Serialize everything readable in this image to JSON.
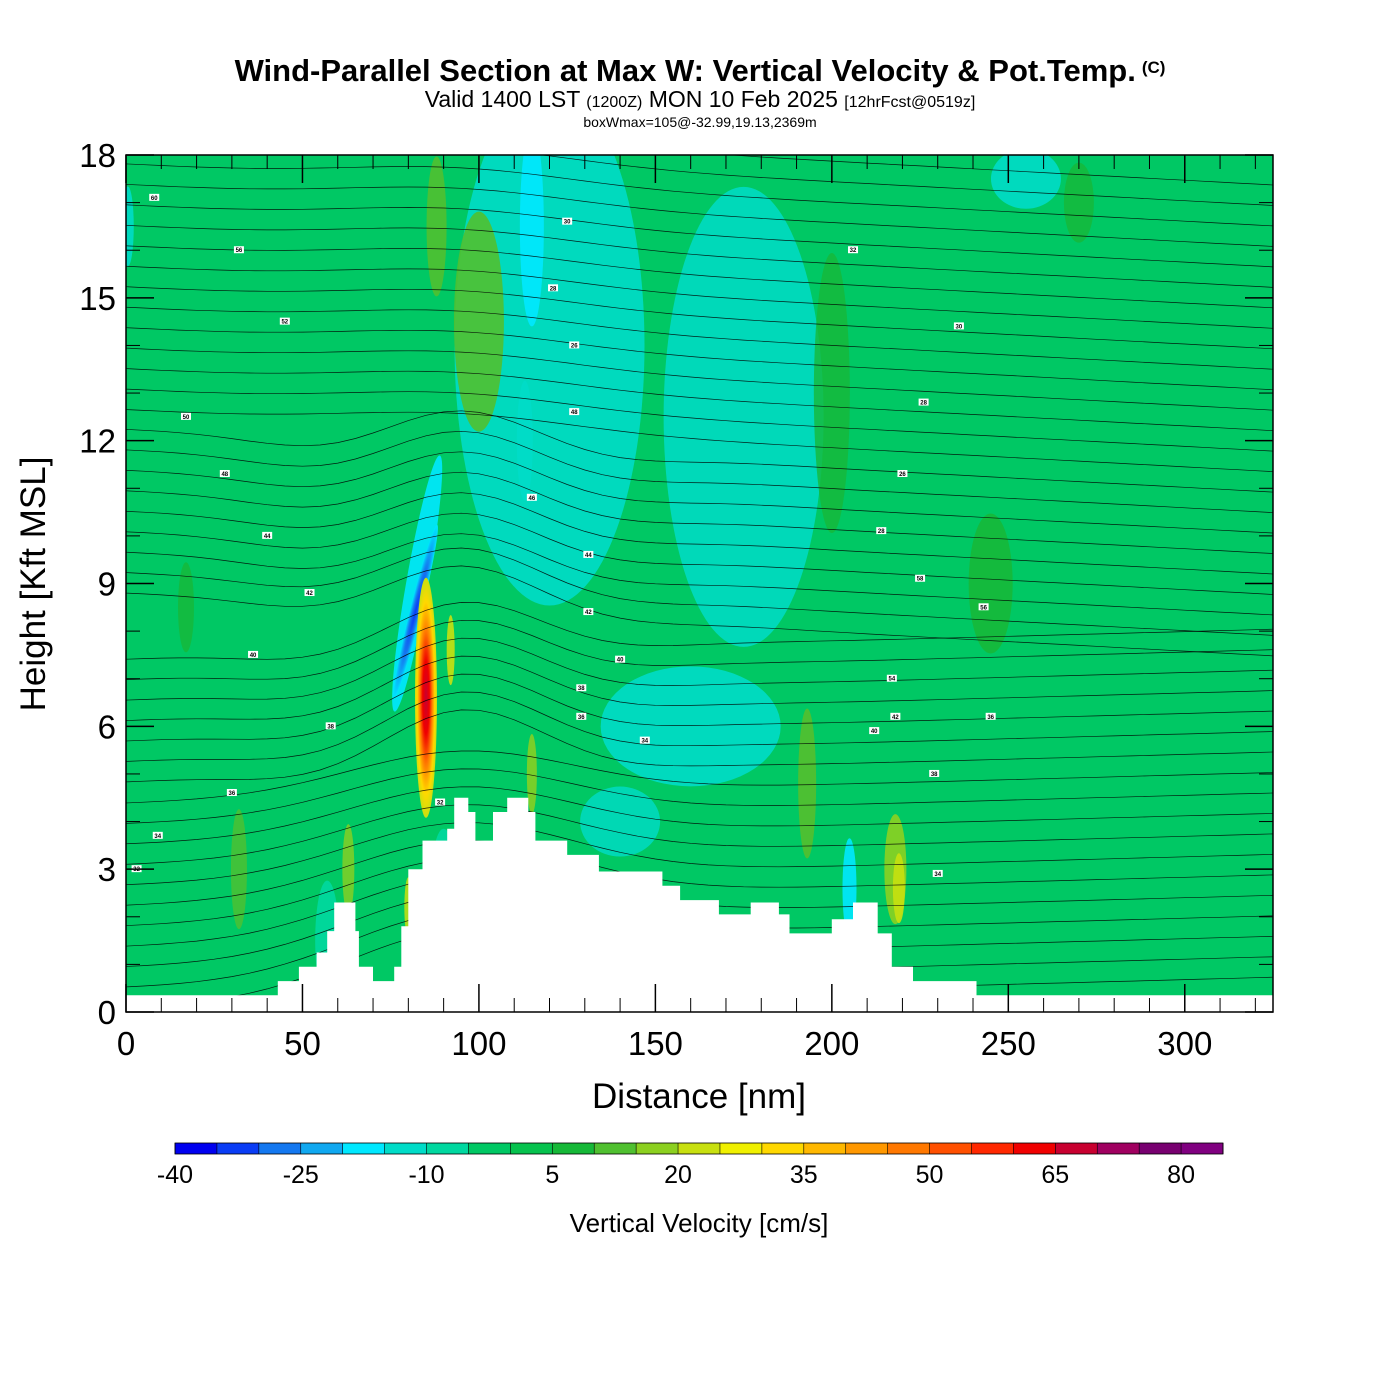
{
  "title": {
    "main": "Wind-Parallel Section at Max W: Vertical Velocity & Pot.Temp.",
    "copyright": "(C)",
    "valid_prefix": "Valid 1400 LST",
    "valid_utc": "(1200Z)",
    "valid_date": "MON 10 Feb 2025",
    "forecast": "[12hrFcst@0519z]",
    "box_info": "boxWmax=105@-32.99,19.13,2369m"
  },
  "chart_data": {
    "type": "heatmap",
    "xlabel": "Distance [nm]",
    "ylabel": "Height [Kft MSL]",
    "xlim": [
      0,
      325
    ],
    "ylim": [
      0,
      18
    ],
    "x_ticks": [
      0,
      50,
      100,
      150,
      200,
      250,
      300
    ],
    "y_ticks": [
      0,
      3,
      6,
      9,
      12,
      15,
      18
    ],
    "colorbar": {
      "title": "Vertical Velocity [cm/s]",
      "levels": [
        -40,
        -35,
        -30,
        -25,
        -20,
        -15,
        -10,
        -5,
        0,
        5,
        10,
        15,
        20,
        25,
        30,
        35,
        40,
        45,
        50,
        55,
        60,
        65,
        70,
        75,
        80,
        85
      ],
      "colors": [
        "#0000f0",
        "#0a3cf5",
        "#1478f0",
        "#10a8f0",
        "#00e8ff",
        "#00dcc8",
        "#00d8a0",
        "#00c864",
        "#06c24e",
        "#16b838",
        "#50c030",
        "#8cd020",
        "#c8e010",
        "#f0f000",
        "#ffd800",
        "#ffb800",
        "#ff9800",
        "#ff7800",
        "#ff5000",
        "#ff2800",
        "#f00000",
        "#c80030",
        "#a00060",
        "#780070",
        "#800080"
      ],
      "tick_labels": [
        -40,
        -25,
        -10,
        5,
        20,
        35,
        50,
        65,
        80
      ]
    },
    "features": [
      {
        "name": "updraft core",
        "x": 84,
        "y_range": [
          4.4,
          8.6
        ],
        "w_max": 105
      },
      {
        "name": "downdraft band",
        "x": 82,
        "y_range": [
          6.0,
          11.5
        ],
        "w_min": -35
      }
    ],
    "terrain": [
      [
        0,
        0.35
      ],
      [
        43,
        0.35
      ],
      [
        43,
        0.65
      ],
      [
        49,
        0.65
      ],
      [
        49,
        0.95
      ],
      [
        54,
        0.95
      ],
      [
        54,
        1.25
      ],
      [
        57,
        1.25
      ],
      [
        57,
        1.7
      ],
      [
        59,
        1.7
      ],
      [
        59,
        2.3
      ],
      [
        65,
        2.3
      ],
      [
        65,
        1.7
      ],
      [
        66,
        1.7
      ],
      [
        66,
        0.95
      ],
      [
        70,
        0.95
      ],
      [
        70,
        0.65
      ],
      [
        76,
        0.65
      ],
      [
        76,
        0.95
      ],
      [
        78,
        0.95
      ],
      [
        78,
        1.8
      ],
      [
        80,
        1.8
      ],
      [
        80,
        3.0
      ],
      [
        84,
        3.0
      ],
      [
        84,
        3.6
      ],
      [
        91,
        3.6
      ],
      [
        91,
        3.85
      ],
      [
        93,
        3.85
      ],
      [
        93,
        4.5
      ],
      [
        97,
        4.5
      ],
      [
        97,
        4.2
      ],
      [
        99,
        4.2
      ],
      [
        99,
        3.6
      ],
      [
        104,
        3.6
      ],
      [
        104,
        4.2
      ],
      [
        108,
        4.2
      ],
      [
        108,
        4.5
      ],
      [
        114,
        4.5
      ],
      [
        114,
        4.2
      ],
      [
        116,
        4.2
      ],
      [
        116,
        3.6
      ],
      [
        125,
        3.6
      ],
      [
        125,
        3.3
      ],
      [
        134,
        3.3
      ],
      [
        134,
        2.95
      ],
      [
        152,
        2.95
      ],
      [
        152,
        2.65
      ],
      [
        157,
        2.65
      ],
      [
        157,
        2.35
      ],
      [
        168,
        2.35
      ],
      [
        168,
        2.05
      ],
      [
        177,
        2.05
      ],
      [
        177,
        2.3
      ],
      [
        185,
        2.3
      ],
      [
        185,
        2.05
      ],
      [
        188,
        2.05
      ],
      [
        188,
        1.65
      ],
      [
        200,
        1.65
      ],
      [
        200,
        1.95
      ],
      [
        206,
        1.95
      ],
      [
        206,
        2.3
      ],
      [
        213,
        2.3
      ],
      [
        213,
        1.65
      ],
      [
        217,
        1.65
      ],
      [
        217,
        0.95
      ],
      [
        223,
        0.95
      ],
      [
        223,
        0.65
      ],
      [
        241,
        0.65
      ],
      [
        241,
        0.35
      ],
      [
        325,
        0.35
      ]
    ],
    "theta_contour_labels": [
      "60",
      "56",
      "52",
      "50",
      "48",
      "44",
      "42",
      "40",
      "38",
      "36",
      "34",
      "32",
      "30",
      "28",
      "26",
      "48",
      "46",
      "44",
      "42",
      "40",
      "38",
      "36",
      "34",
      "32",
      "30",
      "28",
      "26",
      "28",
      "58",
      "56",
      "54",
      "42",
      "40",
      "38",
      "36",
      "34",
      "32",
      "30",
      "28",
      "26",
      "58",
      "54",
      "52",
      "50",
      "38",
      "36",
      "34",
      "32",
      "30",
      "28",
      "26",
      "20"
    ]
  }
}
